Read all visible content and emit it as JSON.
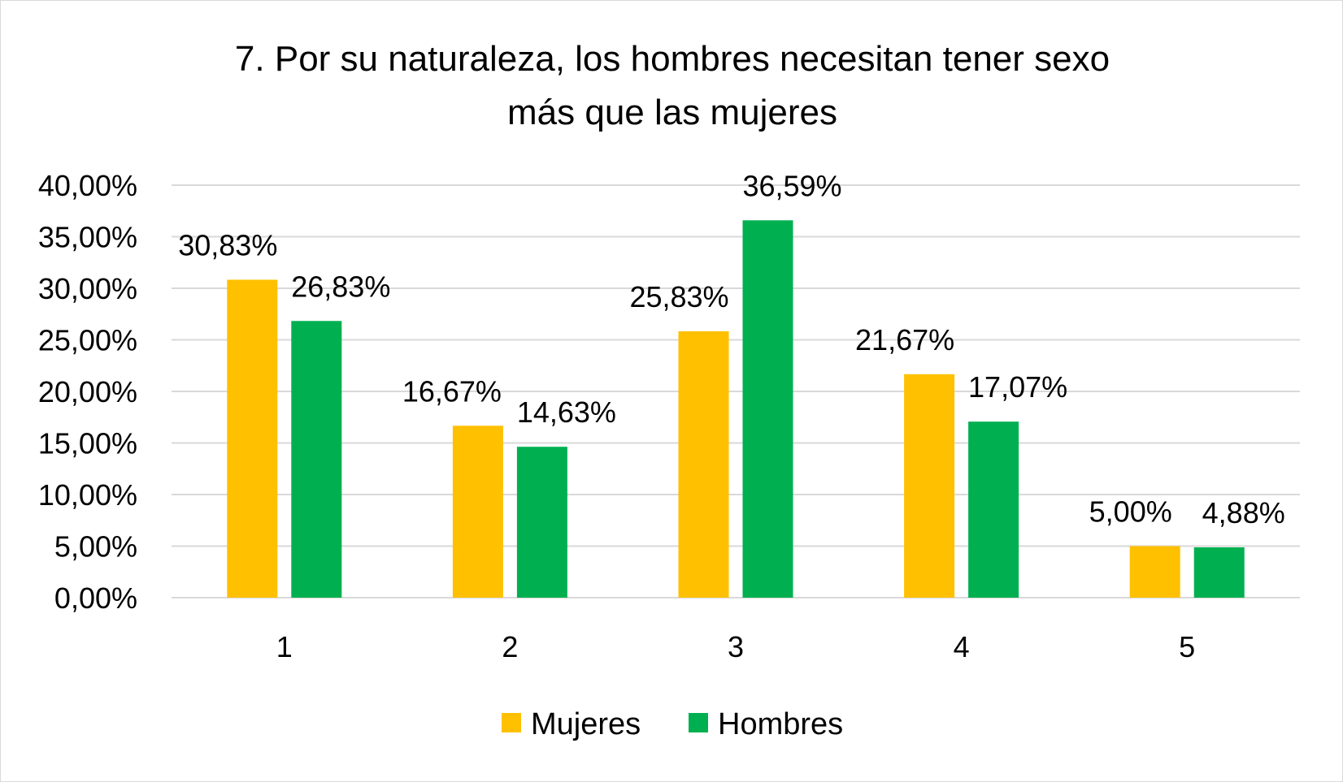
{
  "chart_data": {
    "type": "bar",
    "title_lines": [
      "7. Por su naturaleza, los hombres necesitan tener sexo",
      "más que las mujeres"
    ],
    "categories": [
      "1",
      "2",
      "3",
      "4",
      "5"
    ],
    "series": [
      {
        "name": "Mujeres",
        "color": "#FFC000",
        "values": [
          30.83,
          16.67,
          25.83,
          21.67,
          5.0
        ],
        "labels": [
          "30,83%",
          "16,67%",
          "25,83%",
          "21,67%",
          "5,00%"
        ]
      },
      {
        "name": "Hombres",
        "color": "#00B050",
        "values": [
          26.83,
          14.63,
          36.59,
          17.07,
          4.88
        ],
        "labels": [
          "26,83%",
          "14,63%",
          "36,59%",
          "17,07%",
          "4,88%"
        ]
      }
    ],
    "ylim": [
      0,
      40
    ],
    "yticks": [
      0,
      5,
      10,
      15,
      20,
      25,
      30,
      35,
      40
    ],
    "ytick_labels": [
      "0,00%",
      "5,00%",
      "10,00%",
      "15,00%",
      "20,00%",
      "25,00%",
      "30,00%",
      "35,00%",
      "40,00%"
    ],
    "grid": true,
    "gridline_color": "#d9d9d9",
    "legend_position": "bottom-center",
    "xlabel": "",
    "ylabel": ""
  }
}
